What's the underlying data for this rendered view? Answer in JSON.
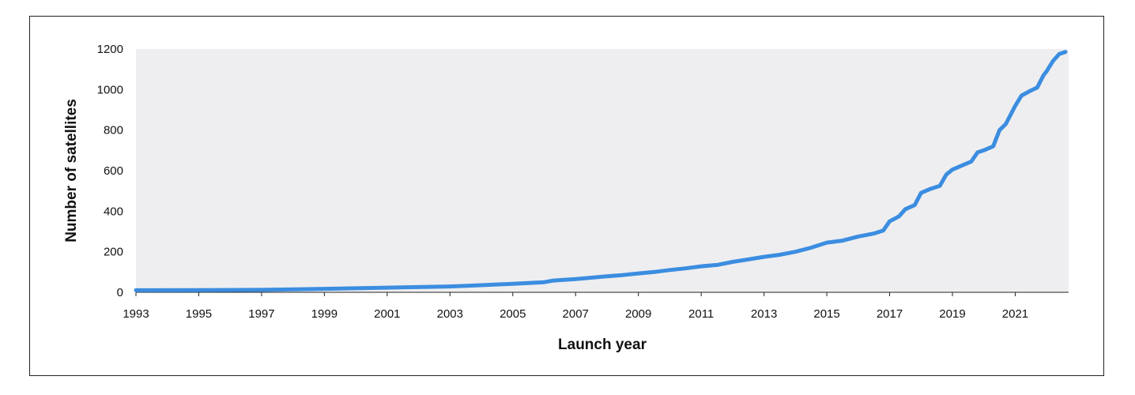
{
  "chart_data": {
    "type": "line",
    "xlabel": "Launch year",
    "ylabel": "Number of satellites",
    "xlim": [
      1993,
      2022.7
    ],
    "ylim": [
      0,
      1200
    ],
    "x_ticks": [
      "1993",
      "1995",
      "1997",
      "1999",
      "2001",
      "2003",
      "2005",
      "2007",
      "2009",
      "2011",
      "2013",
      "2015",
      "2017",
      "2019",
      "2021"
    ],
    "y_ticks": [
      "0",
      "200",
      "400",
      "600",
      "800",
      "1000",
      "1200"
    ],
    "grid": false,
    "legend": "none",
    "colors": {
      "line": "#3b8de0",
      "plot_background": "#eeeef0"
    },
    "series": [
      {
        "x": [
          1993,
          1995,
          1997,
          1999,
          2001,
          2003,
          2004,
          2005,
          2006,
          2006.3,
          2007,
          2007.5,
          2008,
          2008.5,
          2009,
          2009.5,
          2010,
          2010.5,
          2011,
          2011.5,
          2012,
          2012.5,
          2013,
          2013.5,
          2014,
          2014.5,
          2015,
          2015.5,
          2016,
          2016.5,
          2016.8,
          2017,
          2017.3,
          2017.5,
          2017.8,
          2018,
          2018.3,
          2018.6,
          2018.8,
          2019,
          2019.3,
          2019.6,
          2019.8,
          2020,
          2020.3,
          2020.5,
          2020.7,
          2020.9,
          2021,
          2021.2,
          2021.5,
          2021.7,
          2021.9,
          2022,
          2022.2,
          2022.4,
          2022.6
        ],
        "y": [
          10,
          11,
          12,
          17,
          23,
          29,
          35,
          42,
          50,
          58,
          65,
          72,
          79,
          85,
          93,
          100,
          110,
          118,
          128,
          135,
          150,
          162,
          175,
          185,
          200,
          220,
          245,
          255,
          275,
          290,
          305,
          350,
          375,
          410,
          430,
          490,
          510,
          525,
          580,
          605,
          625,
          645,
          690,
          700,
          720,
          800,
          830,
          890,
          920,
          970,
          995,
          1010,
          1070,
          1090,
          1140,
          1175,
          1185
        ]
      }
    ]
  }
}
